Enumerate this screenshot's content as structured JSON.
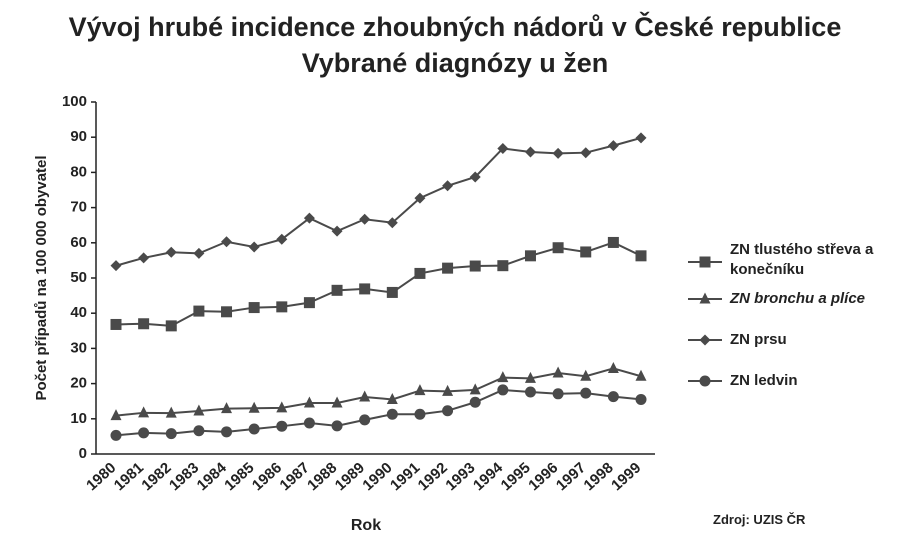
{
  "chart_data": {
    "type": "line",
    "title": "Vývoj hrubé incidence zhoubných nádorů v České republice",
    "subtitle": "Vybrané diagnózy u žen",
    "y_label": "Počet případů na 100 000 obyvatel",
    "x_label": "Rok",
    "source": "Zdroj: UZIS ČR",
    "categories": [
      "1980",
      "1981",
      "1982",
      "1983",
      "1984",
      "1985",
      "1986",
      "1987",
      "1988",
      "1989",
      "1990",
      "1991",
      "1992",
      "1993",
      "1994",
      "1995",
      "1996",
      "1997",
      "1998",
      "1999"
    ],
    "series": [
      {
        "name": "ZN tlustého střeva a konečníku",
        "color": "#4a4a4a",
        "marker": "square",
        "values": [
          36.8,
          37,
          36.4,
          40.6,
          40.4,
          41.6,
          41.8,
          43,
          46.5,
          46.9,
          45.9,
          51.3,
          52.8,
          53.4,
          53.5,
          56.3,
          58.6,
          57.4,
          60.1,
          56.3
        ]
      },
      {
        "name": "ZN bronchu a plíce",
        "color": "#4a4a4a",
        "marker": "triangle",
        "values": [
          10.9,
          11.7,
          11.6,
          12.2,
          12.9,
          13,
          13.1,
          14.5,
          14.5,
          16.2,
          15.5,
          18,
          17.8,
          18.2,
          21.7,
          21.5,
          23,
          22.1,
          24.3,
          22.1
        ]
      },
      {
        "name": "ZN prsu",
        "color": "#4a4a4a",
        "marker": "diamond",
        "values": [
          53.5,
          55.7,
          57.3,
          57,
          60.3,
          58.8,
          61,
          67,
          63.3,
          66.7,
          65.7,
          72.7,
          76.2,
          78.7,
          86.8,
          85.8,
          85.4,
          85.6,
          87.6,
          89.8
        ]
      },
      {
        "name": "ZN ledvin",
        "color": "#4a4a4a",
        "marker": "circle",
        "values": [
          5.3,
          6,
          5.8,
          6.6,
          6.3,
          7.1,
          7.9,
          8.8,
          8,
          9.7,
          11.3,
          11.3,
          12.3,
          14.7,
          18.2,
          17.6,
          17.1,
          17.3,
          16.3,
          15.5
        ]
      }
    ],
    "ylim": [
      0,
      100
    ],
    "yticks": [
      0,
      10,
      20,
      30,
      40,
      50,
      60,
      70,
      80,
      90,
      100
    ],
    "legend": "right"
  }
}
